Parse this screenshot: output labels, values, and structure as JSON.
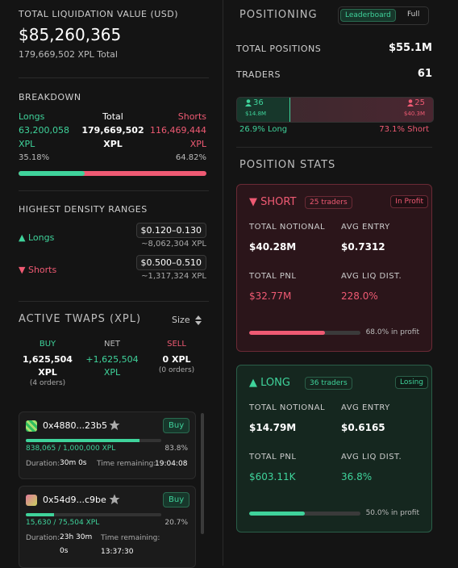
{
  "liquidation": {
    "label": "TOTAL LIQUIDATION VALUE (USD)",
    "value": "$85,260,365",
    "sub": "179,669,502 XPL Total"
  },
  "breakdown": {
    "title": "BREAKDOWN",
    "longs": {
      "label": "Longs",
      "value": "63,200,058",
      "unit": "XPL",
      "pct": "35.18%"
    },
    "total": {
      "label": "Total",
      "value": "179,669,502",
      "unit": "XPL"
    },
    "shorts": {
      "label": "Shorts",
      "value": "116,469,444",
      "unit": "XPL",
      "pct": "64.82%"
    }
  },
  "density": {
    "title": "HIGHEST DENSITY RANGES",
    "rows": [
      {
        "label": "▲ Longs",
        "range": "$0.120–0.130",
        "amount": "~8,062,304 XPL"
      },
      {
        "label": "▼ Shorts",
        "range": "$0.500–0.510",
        "amount": "~1,317,324 XPL"
      }
    ]
  },
  "twaps": {
    "title": "ACTIVE TWAPS (XPL)",
    "sort": "Size",
    "columns": [
      {
        "label": "BUY",
        "value": "1,625,504",
        "unit": "XPL",
        "sub": "(4 orders)"
      },
      {
        "label": "NET",
        "value": "+1,625,504",
        "unit": "XPL"
      },
      {
        "label": "SELL",
        "value": "0 XPL",
        "sub": "(0 orders)"
      }
    ],
    "orders": [
      {
        "address": "0x4880...23b5",
        "button": "Buy",
        "progress": "838,065 / 1,000,000 XPL",
        "pct": "83.8%",
        "duration_label": "Duration:",
        "duration": "30m 0s",
        "remaining_label": "Time remaining:",
        "remaining": "19:04:08"
      },
      {
        "address": "0x54d9...c9be",
        "button": "Buy",
        "progress": "15,630 / 75,504 XPL",
        "pct": "20.7%",
        "duration_label": "Duration:",
        "duration": "23h 30m 0s",
        "remaining_label": "Time remaining:",
        "remaining": "13:37:30"
      }
    ]
  },
  "positioning": {
    "title": "POSITIONING",
    "tabs": [
      "Leaderboard",
      "Full"
    ],
    "total_positions": {
      "label": "TOTAL POSITIONS",
      "value": "$55.1M"
    },
    "traders": {
      "label": "TRADERS",
      "value": "61"
    },
    "split": {
      "long": {
        "count": "36",
        "amount": "$14.8M",
        "pct": "26.9% Long"
      },
      "short": {
        "count": "25",
        "amount": "$40.3M",
        "pct": "73.1% Short"
      }
    }
  },
  "stats": {
    "title": "POSITION STATS",
    "cards": [
      {
        "side": "▼ SHORT",
        "traders": "25 traders",
        "status": "In Profit",
        "items": [
          {
            "label": "TOTAL NOTIONAL",
            "value": "$40.28M"
          },
          {
            "label": "AVG ENTRY",
            "value": "$0.7312"
          },
          {
            "label": "TOTAL PNL",
            "value": "$32.77M"
          },
          {
            "label": "AVG LIQ DIST.",
            "value": "228.0%"
          }
        ],
        "profit": "68.0% in profit"
      },
      {
        "side": "▲ LONG",
        "traders": "36 traders",
        "status": "Losing",
        "items": [
          {
            "label": "TOTAL NOTIONAL",
            "value": "$14.79M"
          },
          {
            "label": "AVG ENTRY",
            "value": "$0.6165"
          },
          {
            "label": "TOTAL PNL",
            "value": "$603.11K"
          },
          {
            "label": "AVG LIQ DIST.",
            "value": "36.8%"
          }
        ],
        "profit": "50.0% in profit"
      }
    ]
  }
}
